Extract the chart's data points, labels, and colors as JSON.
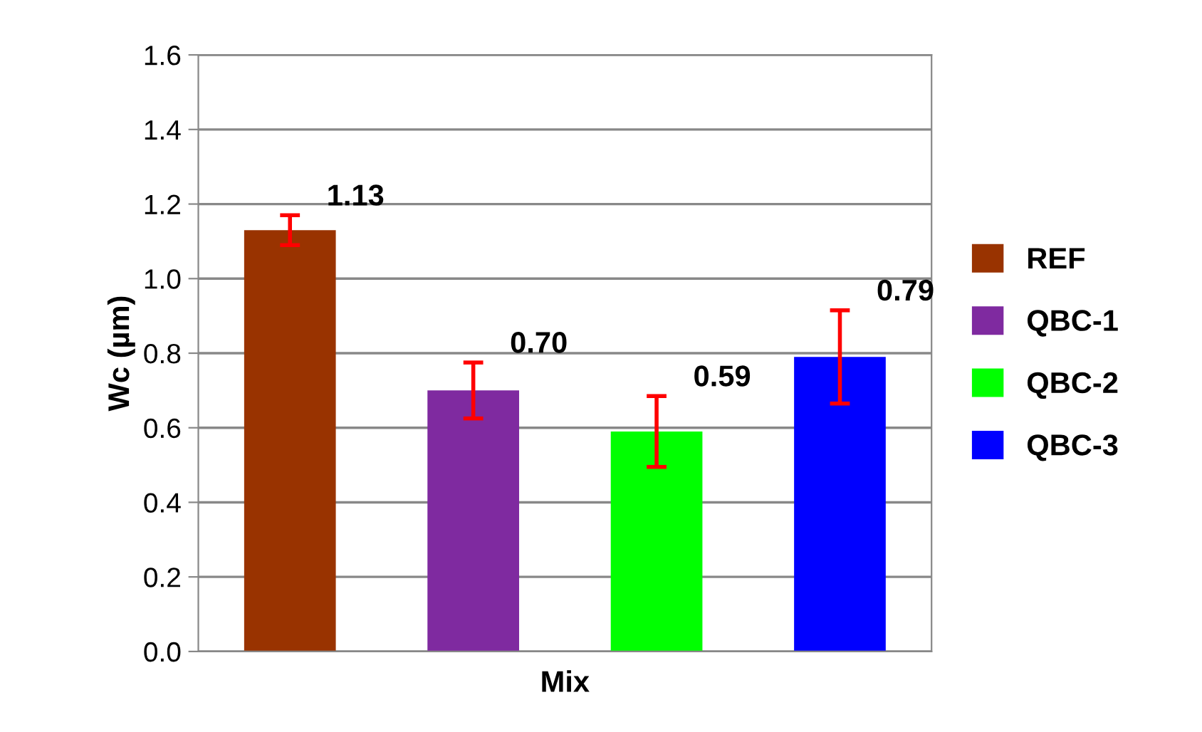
{
  "chart_data": {
    "type": "bar",
    "xlabel": "Mix",
    "ylabel": "Wc (µm)",
    "categories": [
      null,
      null,
      null,
      null
    ],
    "series": [
      {
        "name": "REF",
        "color": "#993300",
        "values": [
          1.13,
          null,
          null,
          null
        ],
        "errors": [
          0.04,
          null,
          null,
          null
        ],
        "value_labels": [
          "1.13",
          null,
          null,
          null
        ]
      },
      {
        "name": "QBC-1",
        "color": "#7f2aa0",
        "values": [
          null,
          0.7,
          null,
          null
        ],
        "errors": [
          null,
          0.075,
          null,
          null
        ],
        "value_labels": [
          null,
          "0.70",
          null,
          null
        ]
      },
      {
        "name": "QBC-2",
        "color": "#00ff00",
        "values": [
          null,
          null,
          0.59,
          null
        ],
        "errors": [
          null,
          null,
          0.095,
          null
        ],
        "value_labels": [
          null,
          null,
          "0.59",
          null
        ]
      },
      {
        "name": "QBC-3",
        "color": "#0000ff",
        "values": [
          null,
          null,
          null,
          0.79
        ],
        "errors": [
          null,
          null,
          null,
          0.125
        ],
        "value_labels": [
          null,
          null,
          null,
          "0.79"
        ]
      }
    ],
    "ylim": [
      0,
      1.6
    ],
    "yticks": [
      {
        "value": 0,
        "label": "0.0"
      },
      0.2,
      0.4,
      0.6,
      0.8,
      {
        "value": 1,
        "label": "1.0"
      },
      1.2,
      1.4,
      1.6
    ],
    "grid": "y",
    "legend": "right"
  }
}
